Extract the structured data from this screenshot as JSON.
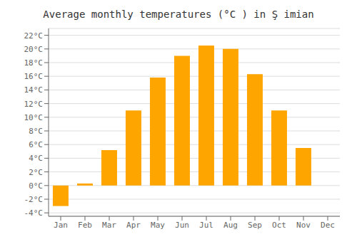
{
  "chart_data": {
    "type": "bar",
    "title": "Average monthly temperatures (°C ) in Ş imian",
    "categories": [
      "Jan",
      "Feb",
      "Mar",
      "Apr",
      "May",
      "Jun",
      "Jul",
      "Aug",
      "Sep",
      "Oct",
      "Nov",
      "Dec"
    ],
    "values": [
      -3.0,
      0.3,
      5.2,
      11.0,
      15.8,
      19.0,
      20.5,
      20.0,
      16.3,
      11.0,
      5.5,
      0.0
    ],
    "color": "#FFA500",
    "ylim": [
      -4.5,
      23
    ],
    "yticks": [
      {
        "value": -4,
        "label": "-4°C"
      },
      {
        "value": -2,
        "label": "-2°C"
      },
      {
        "value": 0,
        "label": "0°C"
      },
      {
        "value": 2,
        "label": "2°C"
      },
      {
        "value": 4,
        "label": "4°C"
      },
      {
        "value": 6,
        "label": "6°C"
      },
      {
        "value": 8,
        "label": "8°C"
      },
      {
        "value": 10,
        "label": "10°C"
      },
      {
        "value": 12,
        "label": "12°C"
      },
      {
        "value": 14,
        "label": "14°C"
      },
      {
        "value": 16,
        "label": "16°C"
      },
      {
        "value": 18,
        "label": "18°C"
      },
      {
        "value": 20,
        "label": "20°C"
      },
      {
        "value": 22,
        "label": "22°C"
      }
    ],
    "grid": true
  }
}
